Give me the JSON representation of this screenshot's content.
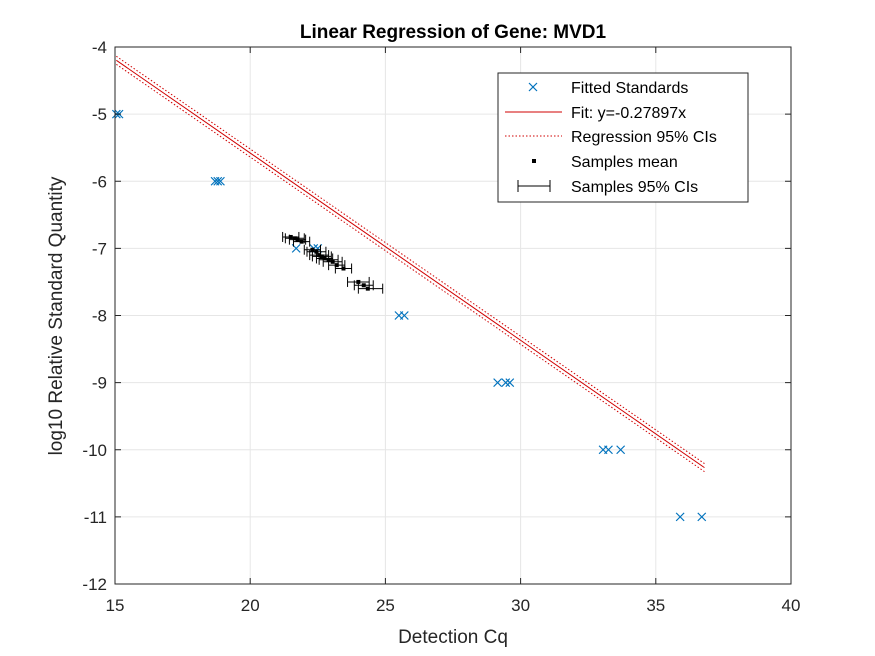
{
  "chart_data": {
    "type": "scatter",
    "title": "Linear Regression of Gene: MVD1",
    "xlabel": "Detection Cq",
    "ylabel": "log10 Relative Standard Quantity",
    "xlim": [
      15,
      40
    ],
    "ylim": [
      -12,
      -4
    ],
    "xticks": [
      "15",
      "20",
      "25",
      "30",
      "35",
      "40"
    ],
    "yticks": [
      "-12",
      "-11",
      "-10",
      "-9",
      "-8",
      "-7",
      "-6",
      "-5",
      "-4"
    ],
    "grid": true,
    "legend_position": "top-right",
    "legend": [
      "Fitted Standards",
      "Fit: y=-0.27897x",
      "Regression 95% CIs",
      "Samples mean",
      "Samples 95% CIs"
    ],
    "fit": {
      "slope": -0.27897,
      "x_range": [
        15.05,
        36.8
      ],
      "ci_offset": 0.06
    },
    "standards": {
      "x": [
        15.05,
        15.15,
        18.7,
        18.8,
        18.9,
        21.7,
        22.35,
        22.5,
        25.5,
        25.7,
        29.15,
        29.45,
        29.6,
        33.05,
        33.25,
        33.7,
        35.9,
        36.7
      ],
      "y": [
        -5,
        -5,
        -6,
        -6,
        -6,
        -7,
        -7,
        -7,
        -8,
        -8,
        -9,
        -9,
        -9,
        -10,
        -10,
        -10,
        -11,
        -11
      ]
    },
    "samples": {
      "x": [
        21.5,
        21.65,
        21.75,
        21.9,
        22.3,
        22.45,
        22.55,
        22.65,
        22.75,
        22.9,
        23.05,
        23.2,
        23.45,
        24.0,
        24.2,
        24.35
      ],
      "y": [
        -6.83,
        -6.85,
        -6.87,
        -6.9,
        -7.02,
        -7.05,
        -7.1,
        -7.12,
        -7.15,
        -7.17,
        -7.2,
        -7.25,
        -7.3,
        -7.5,
        -7.55,
        -7.6
      ],
      "ci_low": [
        21.2,
        21.3,
        21.45,
        21.6,
        22.0,
        22.1,
        22.2,
        22.3,
        22.45,
        22.55,
        22.7,
        22.9,
        23.15,
        23.6,
        23.85,
        24.0
      ],
      "ci_high": [
        21.8,
        22.0,
        22.05,
        22.2,
        22.6,
        22.8,
        22.9,
        23.0,
        23.05,
        23.25,
        23.4,
        23.5,
        23.75,
        24.4,
        24.55,
        24.9
      ]
    },
    "colors": {
      "standards": "#0072BD",
      "fit": "#D00000",
      "samples": "#000000",
      "grid": "#E6E6E6",
      "axes": "#262626"
    }
  }
}
